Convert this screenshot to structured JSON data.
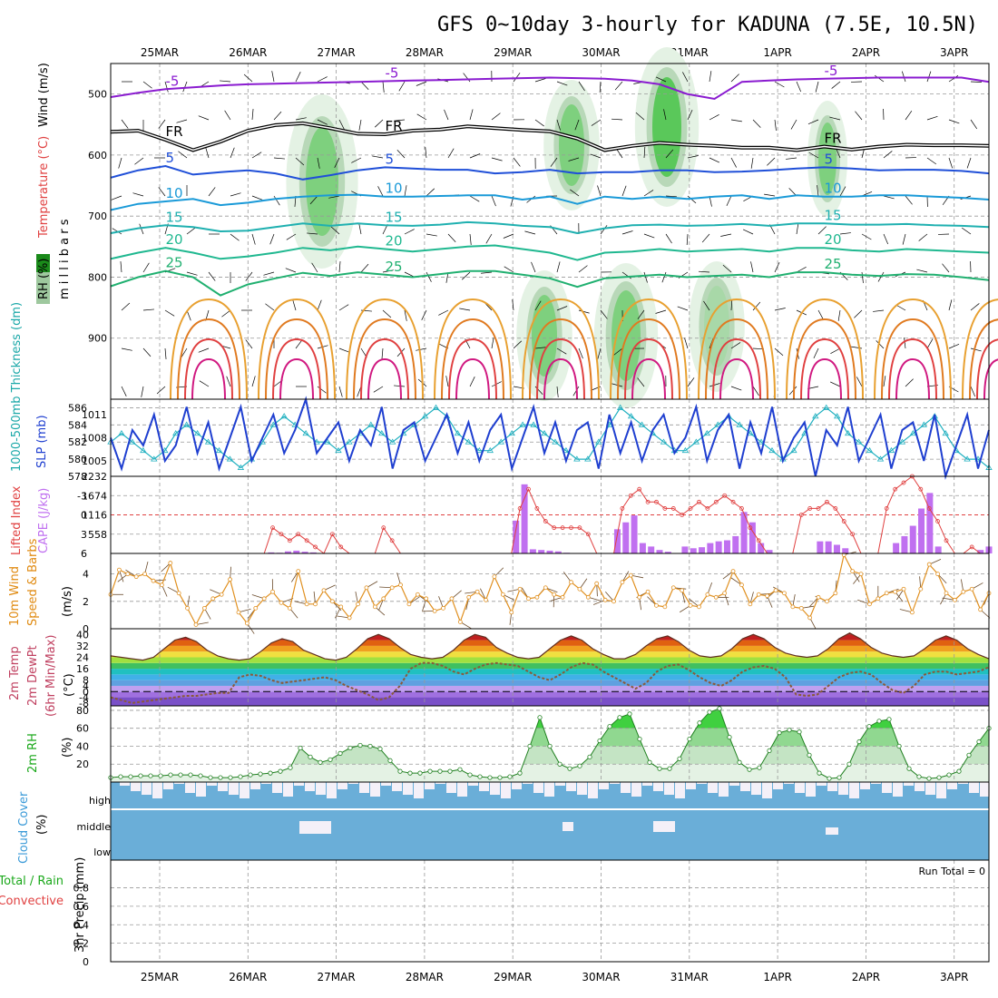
{
  "title": "GFS 0~10day 3-hourly for KADUNA (7.5E, 10.5N)",
  "dates": [
    "25MAR",
    "26MAR",
    "27MAR",
    "28MAR",
    "29MAR",
    "30MAR",
    "31MAR",
    "1APR",
    "2APR",
    "3APR"
  ],
  "chart_data": [
    {
      "type": "contour",
      "panel": "upper-air",
      "ylabel": "m i l l i b a r s",
      "side_labels": {
        "rh": "RH (%)",
        "temp": "Temperature (°C)",
        "wind": "Wind (m/s)"
      },
      "ylim": [
        1000,
        450
      ],
      "yticks": [
        500,
        600,
        700,
        800,
        900
      ],
      "isotherms": [
        {
          "name": "-5",
          "color": "#8a1bd0",
          "values": [
            505,
            498,
            492,
            489,
            486,
            484,
            483,
            482,
            481,
            480,
            479,
            478,
            477,
            476,
            475,
            474,
            473,
            474,
            475,
            478,
            484,
            500,
            508,
            480,
            478,
            476,
            475,
            474,
            473,
            473,
            473,
            473,
            480
          ]
        },
        {
          "name": "FR",
          "color": "#000000",
          "values": [
            562,
            560,
            575,
            592,
            578,
            560,
            551,
            548,
            556,
            565,
            566,
            560,
            558,
            553,
            556,
            559,
            561,
            573,
            592,
            585,
            580,
            583,
            585,
            588,
            588,
            592,
            586,
            591,
            586,
            583,
            584,
            584,
            585
          ]
        },
        {
          "name": "5",
          "color": "#1f4fd8",
          "values": [
            637,
            625,
            618,
            632,
            628,
            625,
            630,
            640,
            633,
            625,
            620,
            622,
            624,
            624,
            630,
            628,
            624,
            630,
            628,
            628,
            625,
            625,
            628,
            627,
            625,
            622,
            620,
            622,
            625,
            624,
            624,
            626,
            630
          ]
        },
        {
          "name": "10",
          "color": "#1a9ad8",
          "values": [
            690,
            680,
            676,
            672,
            682,
            678,
            672,
            668,
            666,
            665,
            668,
            668,
            667,
            666,
            666,
            673,
            668,
            680,
            668,
            672,
            668,
            672,
            668,
            666,
            672,
            666,
            668,
            668,
            666,
            666,
            668,
            670,
            673
          ]
        },
        {
          "name": "15",
          "color": "#1fb0b0",
          "values": [
            728,
            720,
            715,
            718,
            725,
            724,
            718,
            712,
            716,
            712,
            715,
            716,
            714,
            710,
            712,
            716,
            718,
            728,
            720,
            715,
            714,
            716,
            715,
            713,
            716,
            712,
            712,
            714,
            714,
            713,
            715,
            716,
            718
          ]
        },
        {
          "name": "20",
          "color": "#20b890",
          "values": [
            770,
            760,
            752,
            760,
            770,
            766,
            760,
            752,
            756,
            750,
            754,
            758,
            754,
            750,
            748,
            754,
            760,
            772,
            760,
            758,
            754,
            758,
            756,
            754,
            758,
            752,
            752,
            756,
            758,
            754,
            756,
            758,
            760
          ]
        },
        {
          "name": "25",
          "color": "#20b070",
          "values": [
            815,
            800,
            790,
            800,
            830,
            812,
            802,
            793,
            798,
            792,
            796,
            800,
            795,
            790,
            790,
            796,
            802,
            816,
            802,
            799,
            796,
            800,
            798,
            796,
            800,
            792,
            792,
            796,
            798,
            795,
            796,
            800,
            805
          ]
        }
      ]
    },
    {
      "type": "line",
      "panel": "pressure",
      "series": [
        {
          "name": "SLP (mb)",
          "axis": "right",
          "ylim": [
            1003,
            1013
          ],
          "yticks": [
            1005,
            1008,
            1011
          ],
          "values": [
            1008,
            1004,
            1009,
            1007,
            1011,
            1005,
            1007,
            1012,
            1006,
            1010,
            1004,
            1008,
            1012,
            1005,
            1008,
            1011,
            1006,
            1009,
            1013,
            1006,
            1008,
            1010,
            1005,
            1009,
            1007,
            1012,
            1004,
            1009,
            1010,
            1005,
            1008,
            1011,
            1006,
            1010,
            1005,
            1009,
            1011,
            1004,
            1008,
            1012,
            1006,
            1010,
            1005,
            1009,
            1010,
            1004,
            1011,
            1006,
            1010,
            1005,
            1009,
            1011,
            1006,
            1008,
            1012,
            1005,
            1009,
            1011,
            1004,
            1010,
            1006,
            1012,
            1005,
            1008,
            1010,
            1003,
            1009,
            1007,
            1012,
            1005,
            1008,
            1011,
            1004,
            1009,
            1010,
            1005,
            1011,
            1003,
            1007,
            1011,
            1004,
            1009
          ]
        },
        {
          "name": "1000-500mb Thickness (dm)",
          "axis": "left",
          "ylim": [
            578,
            587
          ],
          "yticks": [
            578,
            580,
            582,
            584,
            586
          ],
          "values": [
            582,
            583,
            582,
            581,
            580,
            581,
            583,
            584,
            583,
            582,
            581,
            580,
            579,
            580,
            582,
            584,
            585,
            584,
            583,
            582,
            582,
            581,
            582,
            583,
            584,
            583,
            582,
            583,
            584,
            585,
            586,
            585,
            583,
            582,
            581,
            581,
            582,
            583,
            584,
            584,
            583,
            582,
            581,
            580,
            580,
            582,
            584,
            586,
            585,
            584,
            583,
            582,
            581,
            581,
            582,
            583,
            584,
            585,
            584,
            583,
            582,
            581,
            580,
            581,
            583,
            585,
            586,
            585,
            583,
            582,
            581,
            580,
            581,
            582,
            583,
            584,
            585,
            583,
            581,
            580,
            580,
            579
          ]
        }
      ]
    },
    {
      "type": "bar+line",
      "panel": "instability",
      "series": [
        {
          "name": "CAPE (J/kg)",
          "axis": "right",
          "ylim": [
            0,
            2232
          ],
          "yticks": [
            558,
            1116,
            1674,
            2232
          ],
          "values": [
            0,
            0,
            0,
            0,
            0,
            0,
            0,
            0,
            0,
            0,
            0,
            0,
            0,
            0,
            0,
            0,
            0,
            0,
            0,
            30,
            20,
            60,
            80,
            50,
            30,
            0,
            0,
            0,
            0,
            0,
            0,
            0,
            0,
            0,
            0,
            0,
            0,
            0,
            0,
            0,
            0,
            0,
            0,
            0,
            0,
            0,
            0,
            0,
            950,
            2000,
            120,
            100,
            80,
            60,
            20,
            10,
            0,
            0,
            0,
            0,
            700,
            900,
            1100,
            300,
            200,
            100,
            50,
            0,
            200,
            150,
            180,
            300,
            350,
            380,
            500,
            1200,
            900,
            300,
            100,
            0,
            0,
            0,
            0,
            0,
            350,
            350,
            250,
            150,
            0,
            0,
            0,
            0,
            0,
            300,
            500,
            800,
            1300,
            1750,
            200,
            0,
            0,
            0,
            0,
            100,
            200
          ]
        },
        {
          "name": "Lifted Index",
          "axis": "left",
          "ylim": [
            6,
            -6
          ],
          "yticks": [
            -3,
            0,
            3,
            6
          ],
          "values": [
            6,
            6,
            6,
            6,
            6,
            6,
            6,
            6,
            6,
            6,
            6,
            6,
            6,
            6,
            6,
            6,
            6,
            6,
            6,
            2,
            3,
            4,
            3,
            4,
            5,
            6,
            3,
            5,
            6,
            6,
            6,
            6,
            2,
            4,
            6,
            6,
            6,
            6,
            6,
            6,
            6,
            6,
            6,
            6,
            6,
            6,
            6,
            6,
            -1,
            -4,
            -1,
            1,
            2,
            2,
            2,
            2,
            3,
            6,
            6,
            6,
            -1,
            -3,
            -4,
            -2,
            -2,
            -1,
            -1,
            0,
            -1,
            -2,
            -1,
            -2,
            -3,
            -2,
            -1,
            2,
            4,
            6,
            6,
            6,
            6,
            0,
            -1,
            -1,
            -2,
            -1,
            1,
            3,
            6,
            6,
            6,
            -1,
            -4,
            -5,
            -6,
            -4,
            -1,
            1,
            4,
            6,
            6,
            5,
            6,
            6
          ]
        }
      ]
    },
    {
      "type": "line",
      "panel": "wind10m",
      "ylabel": "10m Wind Speed & Barbs (m/s)",
      "ylim": [
        0,
        5.5
      ],
      "yticks": [
        0,
        2,
        4
      ],
      "values": [
        2.5,
        4.3,
        4.0,
        3.8,
        4.0,
        3.5,
        3.2,
        4.8,
        2.6,
        1.5,
        0.3,
        1.5,
        2.2,
        2.5,
        3.6,
        1.2,
        0.4,
        1.5,
        2.2,
        2.7,
        1.9,
        1.5,
        4.2,
        1.8,
        1.8,
        2.8,
        2.0,
        1.6,
        0.8,
        1.8,
        3.0,
        1.6,
        2.2,
        3.0,
        3.2,
        1.8,
        2.5,
        2.2,
        1.3,
        1.5,
        2.2,
        0.5,
        2.3,
        2.7,
        2.1,
        3.8,
        2.5,
        1.2,
        2.9,
        2.2,
        2.3,
        3.0,
        2.5,
        2.3,
        3.4,
        2.9,
        2.3,
        3.3,
        2.1,
        2.0,
        3.4,
        3.9,
        2.3,
        2.7,
        1.7,
        1.6,
        3.0,
        2.8,
        1.7,
        1.6,
        2.5,
        2.3,
        2.6,
        4.2,
        3.2,
        1.8,
        2.5,
        2.4,
        2.8,
        2.6,
        1.6,
        1.5,
        0.8,
        2.3,
        2.0,
        2.6,
        5.4,
        4.2,
        4.0,
        1.8,
        2.2,
        2.6,
        2.7,
        2.9,
        1.2,
        2.9,
        4.7,
        4.0,
        2.6,
        2.1,
        2.7,
        2.9,
        1.4,
        2.6
      ]
    },
    {
      "type": "area+line",
      "panel": "temp2m",
      "ylabel": "2m Temp 2m DewPt (6hr Min/Max) (°C)",
      "ylim": [
        -10,
        44
      ],
      "yticks": [
        -8,
        -4,
        0,
        4,
        8,
        16,
        24,
        32,
        40
      ],
      "series": [
        {
          "name": "2m Temp",
          "values": [
            25,
            24,
            23,
            22,
            24,
            30,
            36,
            38,
            35,
            29,
            25,
            23,
            22,
            23,
            28,
            34,
            37,
            35,
            29,
            26,
            23,
            22,
            24,
            30,
            37,
            40,
            37,
            31,
            26,
            24,
            23,
            24,
            29,
            36,
            40,
            38,
            31,
            27,
            24,
            23,
            24,
            30,
            36,
            39,
            36,
            30,
            26,
            23,
            23,
            26,
            32,
            37,
            39,
            35,
            29,
            25,
            24,
            25,
            30,
            37,
            40,
            37,
            31,
            27,
            25,
            24,
            25,
            30,
            37,
            41,
            37,
            31,
            27,
            25,
            24,
            25,
            30,
            36,
            39,
            36,
            30,
            26,
            23
          ]
        },
        {
          "name": "2m DewPt",
          "values": [
            -4,
            -6,
            -8,
            -7,
            -6,
            -5,
            -4,
            -3,
            -3,
            -2,
            -1,
            -1,
            10,
            12,
            11,
            8,
            6,
            7,
            8,
            9,
            10,
            8,
            4,
            1,
            -2,
            -6,
            -4,
            4,
            16,
            20,
            20,
            18,
            14,
            12,
            16,
            19,
            20,
            19,
            18,
            14,
            10,
            8,
            12,
            17,
            20,
            19,
            14,
            10,
            6,
            2,
            6,
            14,
            18,
            19,
            15,
            10,
            6,
            4,
            8,
            14,
            17,
            18,
            16,
            10,
            -2,
            -3,
            -2,
            4,
            10,
            13,
            14,
            12,
            6,
            1,
            -1,
            4,
            12,
            14,
            14,
            12,
            13,
            14,
            17
          ]
        }
      ]
    },
    {
      "type": "area",
      "panel": "rh2m",
      "ylabel": "2m RH (%)",
      "ylim": [
        0,
        85
      ],
      "yticks": [
        20,
        40,
        60,
        80
      ],
      "values": [
        5,
        6,
        6,
        7,
        7,
        7,
        8,
        8,
        8,
        7,
        5,
        5,
        5,
        6,
        8,
        9,
        10,
        12,
        16,
        38,
        28,
        22,
        25,
        32,
        38,
        41,
        40,
        37,
        24,
        12,
        10,
        10,
        12,
        12,
        12,
        14,
        8,
        6,
        5,
        5,
        6,
        10,
        40,
        72,
        40,
        20,
        15,
        18,
        28,
        46,
        62,
        72,
        76,
        48,
        22,
        15,
        15,
        26,
        48,
        66,
        78,
        82,
        50,
        22,
        14,
        16,
        35,
        55,
        58,
        56,
        30,
        10,
        4,
        5,
        20,
        45,
        62,
        68,
        70,
        40,
        15,
        6,
        4,
        5,
        8,
        12,
        30,
        45,
        60
      ]
    },
    {
      "type": "heatmap",
      "panel": "cloud",
      "ylabel": "Cloud Cover (%)",
      "rows": [
        "high",
        "middle",
        "low"
      ],
      "note": "Run Total = 0"
    },
    {
      "type": "bar",
      "panel": "precip",
      "ylabel": "Total / Rain Convective 3hr Precip (mm)",
      "ylim": [
        0,
        1
      ],
      "yticks": [
        0,
        0.2,
        0.4,
        0.6,
        0.8
      ],
      "run_total": "Run Total = 0"
    }
  ],
  "labels": {
    "rh": "RH (%)",
    "temperature": "Temperature (°C)",
    "wind": "Wind (m/s)",
    "millibars": "m i l l i b a r s",
    "thickness": "1000-500mb Thickness (dm)",
    "slp": "SLP (mb)",
    "lifted": "Lifted Index",
    "cape": "CAPE (J/kg)",
    "wind10": "10m Wind",
    "wind10b": "Speed & Barbs",
    "ms": "(m/s)",
    "temp2m": "2m Temp",
    "dewpt2m": "2m DewPt",
    "minmax": "(6hr Min/Max)",
    "degc": "(°C)",
    "rh2m": "2m RH",
    "pct": "(%)",
    "cloud": "Cloud Cover",
    "high": "high",
    "middle": "middle",
    "low": "low",
    "precipA": "Total / Rain",
    "precipB": "Convective",
    "precipC": "3hr Precip (mm)",
    "runtotal": "Run Total = 0"
  }
}
